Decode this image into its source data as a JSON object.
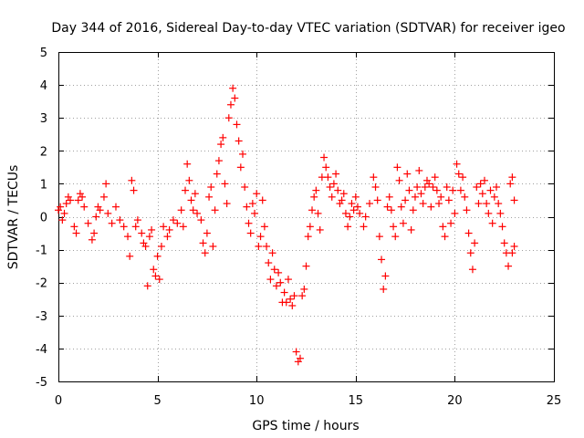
{
  "chart_data": {
    "type": "scatter",
    "title": "Day 344 of 2016, Sidereal Day-to-day VTEC variation (SDTVAR) for receiver igeo",
    "xlabel": "GPS time / hours",
    "ylabel": "SDTVAR / TECUs",
    "xlim": [
      0,
      25
    ],
    "ylim": [
      -5,
      5
    ],
    "xticks": [
      "0",
      "5",
      "10",
      "15",
      "20",
      "25"
    ],
    "yticks": [
      "-5",
      "-4",
      "-3",
      "-2",
      "-1",
      "0",
      "1",
      "2",
      "3",
      "4",
      "5"
    ],
    "grid": true,
    "marker": "+",
    "color": "#ff0000",
    "series": [
      {
        "name": "SDTVAR",
        "points": [
          [
            0.0,
            0.2
          ],
          [
            0.1,
            0.3
          ],
          [
            0.2,
            -0.1
          ],
          [
            0.3,
            0.1
          ],
          [
            0.4,
            0.4
          ],
          [
            0.5,
            0.6
          ],
          [
            0.6,
            0.5
          ],
          [
            0.8,
            -0.3
          ],
          [
            0.9,
            -0.5
          ],
          [
            1.0,
            0.5
          ],
          [
            1.1,
            0.7
          ],
          [
            1.2,
            0.6
          ],
          [
            1.3,
            0.3
          ],
          [
            1.5,
            -0.2
          ],
          [
            1.7,
            -0.7
          ],
          [
            1.8,
            -0.5
          ],
          [
            1.9,
            0.0
          ],
          [
            2.0,
            0.3
          ],
          [
            2.1,
            0.2
          ],
          [
            2.3,
            0.6
          ],
          [
            2.4,
            1.0
          ],
          [
            2.5,
            0.1
          ],
          [
            2.7,
            -0.2
          ],
          [
            2.9,
            0.3
          ],
          [
            3.1,
            -0.1
          ],
          [
            3.3,
            -0.3
          ],
          [
            3.5,
            -0.6
          ],
          [
            3.6,
            -1.2
          ],
          [
            3.7,
            1.1
          ],
          [
            3.8,
            0.8
          ],
          [
            3.9,
            -0.3
          ],
          [
            4.0,
            -0.1
          ],
          [
            4.2,
            -0.5
          ],
          [
            4.3,
            -0.8
          ],
          [
            4.4,
            -0.9
          ],
          [
            4.5,
            -2.1
          ],
          [
            4.6,
            -0.6
          ],
          [
            4.7,
            -0.4
          ],
          [
            4.8,
            -1.6
          ],
          [
            4.9,
            -1.8
          ],
          [
            5.0,
            -1.2
          ],
          [
            5.1,
            -1.9
          ],
          [
            5.2,
            -0.9
          ],
          [
            5.3,
            -0.3
          ],
          [
            5.5,
            -0.6
          ],
          [
            5.6,
            -0.4
          ],
          [
            5.8,
            -0.1
          ],
          [
            6.0,
            -0.2
          ],
          [
            6.2,
            0.2
          ],
          [
            6.3,
            -0.3
          ],
          [
            6.4,
            0.8
          ],
          [
            6.5,
            1.6
          ],
          [
            6.6,
            1.1
          ],
          [
            6.7,
            0.5
          ],
          [
            6.8,
            0.2
          ],
          [
            6.9,
            0.7
          ],
          [
            7.0,
            0.1
          ],
          [
            7.2,
            -0.1
          ],
          [
            7.3,
            -0.8
          ],
          [
            7.4,
            -1.1
          ],
          [
            7.5,
            -0.5
          ],
          [
            7.6,
            0.6
          ],
          [
            7.7,
            0.9
          ],
          [
            7.8,
            -0.9
          ],
          [
            7.9,
            0.2
          ],
          [
            8.0,
            1.3
          ],
          [
            8.1,
            1.7
          ],
          [
            8.2,
            2.2
          ],
          [
            8.3,
            2.4
          ],
          [
            8.4,
            1.0
          ],
          [
            8.5,
            0.4
          ],
          [
            8.6,
            3.0
          ],
          [
            8.7,
            3.4
          ],
          [
            8.8,
            3.9
          ],
          [
            8.9,
            3.6
          ],
          [
            9.0,
            2.8
          ],
          [
            9.1,
            2.3
          ],
          [
            9.2,
            1.5
          ],
          [
            9.3,
            1.9
          ],
          [
            9.4,
            0.9
          ],
          [
            9.5,
            0.3
          ],
          [
            9.6,
            -0.2
          ],
          [
            9.7,
            -0.5
          ],
          [
            9.8,
            0.4
          ],
          [
            9.9,
            0.1
          ],
          [
            10.0,
            0.7
          ],
          [
            10.1,
            -0.9
          ],
          [
            10.2,
            -0.6
          ],
          [
            10.3,
            0.5
          ],
          [
            10.4,
            -0.3
          ],
          [
            10.5,
            -0.9
          ],
          [
            10.6,
            -1.4
          ],
          [
            10.7,
            -1.9
          ],
          [
            10.8,
            -1.1
          ],
          [
            10.9,
            -1.6
          ],
          [
            11.0,
            -2.1
          ],
          [
            11.1,
            -1.7
          ],
          [
            11.2,
            -2.0
          ],
          [
            11.3,
            -2.6
          ],
          [
            11.4,
            -2.3
          ],
          [
            11.5,
            -2.6
          ],
          [
            11.6,
            -1.9
          ],
          [
            11.7,
            -2.5
          ],
          [
            11.8,
            -2.7
          ],
          [
            11.9,
            -2.4
          ],
          [
            12.0,
            -4.1
          ],
          [
            12.1,
            -4.4
          ],
          [
            12.2,
            -4.3
          ],
          [
            12.3,
            -2.4
          ],
          [
            12.4,
            -2.2
          ],
          [
            12.5,
            -1.5
          ],
          [
            12.6,
            -0.6
          ],
          [
            12.7,
            -0.3
          ],
          [
            12.8,
            0.2
          ],
          [
            12.9,
            0.6
          ],
          [
            13.0,
            0.8
          ],
          [
            13.1,
            0.1
          ],
          [
            13.2,
            -0.4
          ],
          [
            13.3,
            1.2
          ],
          [
            13.4,
            1.8
          ],
          [
            13.5,
            1.5
          ],
          [
            13.6,
            1.2
          ],
          [
            13.7,
            0.9
          ],
          [
            13.8,
            0.6
          ],
          [
            13.9,
            1.0
          ],
          [
            14.0,
            1.3
          ],
          [
            14.1,
            0.8
          ],
          [
            14.2,
            0.4
          ],
          [
            14.3,
            0.5
          ],
          [
            14.4,
            0.7
          ],
          [
            14.5,
            0.1
          ],
          [
            14.6,
            -0.3
          ],
          [
            14.7,
            0.0
          ],
          [
            14.8,
            0.4
          ],
          [
            14.9,
            0.2
          ],
          [
            15.0,
            0.6
          ],
          [
            15.1,
            0.3
          ],
          [
            15.2,
            0.1
          ],
          [
            15.4,
            -0.3
          ],
          [
            15.5,
            0.0
          ],
          [
            15.7,
            0.4
          ],
          [
            15.9,
            1.2
          ],
          [
            16.0,
            0.9
          ],
          [
            16.1,
            0.5
          ],
          [
            16.2,
            -0.6
          ],
          [
            16.3,
            -1.3
          ],
          [
            16.4,
            -2.2
          ],
          [
            16.5,
            -1.8
          ],
          [
            16.6,
            0.3
          ],
          [
            16.7,
            0.6
          ],
          [
            16.8,
            0.2
          ],
          [
            16.9,
            -0.3
          ],
          [
            17.0,
            -0.6
          ],
          [
            17.1,
            1.5
          ],
          [
            17.2,
            1.1
          ],
          [
            17.3,
            0.3
          ],
          [
            17.4,
            -0.2
          ],
          [
            17.5,
            0.5
          ],
          [
            17.6,
            1.3
          ],
          [
            17.7,
            0.8
          ],
          [
            17.8,
            -0.4
          ],
          [
            17.9,
            0.2
          ],
          [
            18.0,
            0.6
          ],
          [
            18.1,
            0.9
          ],
          [
            18.2,
            1.4
          ],
          [
            18.3,
            0.7
          ],
          [
            18.4,
            0.4
          ],
          [
            18.5,
            0.9
          ],
          [
            18.6,
            1.1
          ],
          [
            18.7,
            1.0
          ],
          [
            18.8,
            0.3
          ],
          [
            18.9,
            0.9
          ],
          [
            19.0,
            1.2
          ],
          [
            19.1,
            0.8
          ],
          [
            19.2,
            0.4
          ],
          [
            19.3,
            0.6
          ],
          [
            19.4,
            -0.3
          ],
          [
            19.5,
            -0.6
          ],
          [
            19.6,
            0.9
          ],
          [
            19.7,
            0.5
          ],
          [
            19.8,
            -0.2
          ],
          [
            19.9,
            0.8
          ],
          [
            20.0,
            0.1
          ],
          [
            20.1,
            1.6
          ],
          [
            20.2,
            1.3
          ],
          [
            20.3,
            0.8
          ],
          [
            20.4,
            1.2
          ],
          [
            20.5,
            0.6
          ],
          [
            20.6,
            0.2
          ],
          [
            20.7,
            -0.5
          ],
          [
            20.8,
            -1.1
          ],
          [
            20.9,
            -1.6
          ],
          [
            21.0,
            -0.8
          ],
          [
            21.1,
            0.9
          ],
          [
            21.2,
            0.4
          ],
          [
            21.3,
            1.0
          ],
          [
            21.4,
            0.7
          ],
          [
            21.5,
            1.1
          ],
          [
            21.6,
            0.4
          ],
          [
            21.7,
            0.1
          ],
          [
            21.8,
            0.8
          ],
          [
            21.9,
            -0.2
          ],
          [
            22.0,
            0.6
          ],
          [
            22.1,
            0.9
          ],
          [
            22.2,
            0.4
          ],
          [
            22.3,
            0.1
          ],
          [
            22.4,
            -0.3
          ],
          [
            22.5,
            -0.8
          ],
          [
            22.6,
            -1.1
          ],
          [
            22.7,
            -1.5
          ],
          [
            22.8,
            1.0
          ],
          [
            22.9,
            1.2
          ],
          [
            23.0,
            0.5
          ],
          [
            23.0,
            -0.9
          ],
          [
            22.9,
            -1.1
          ]
        ]
      }
    ]
  }
}
